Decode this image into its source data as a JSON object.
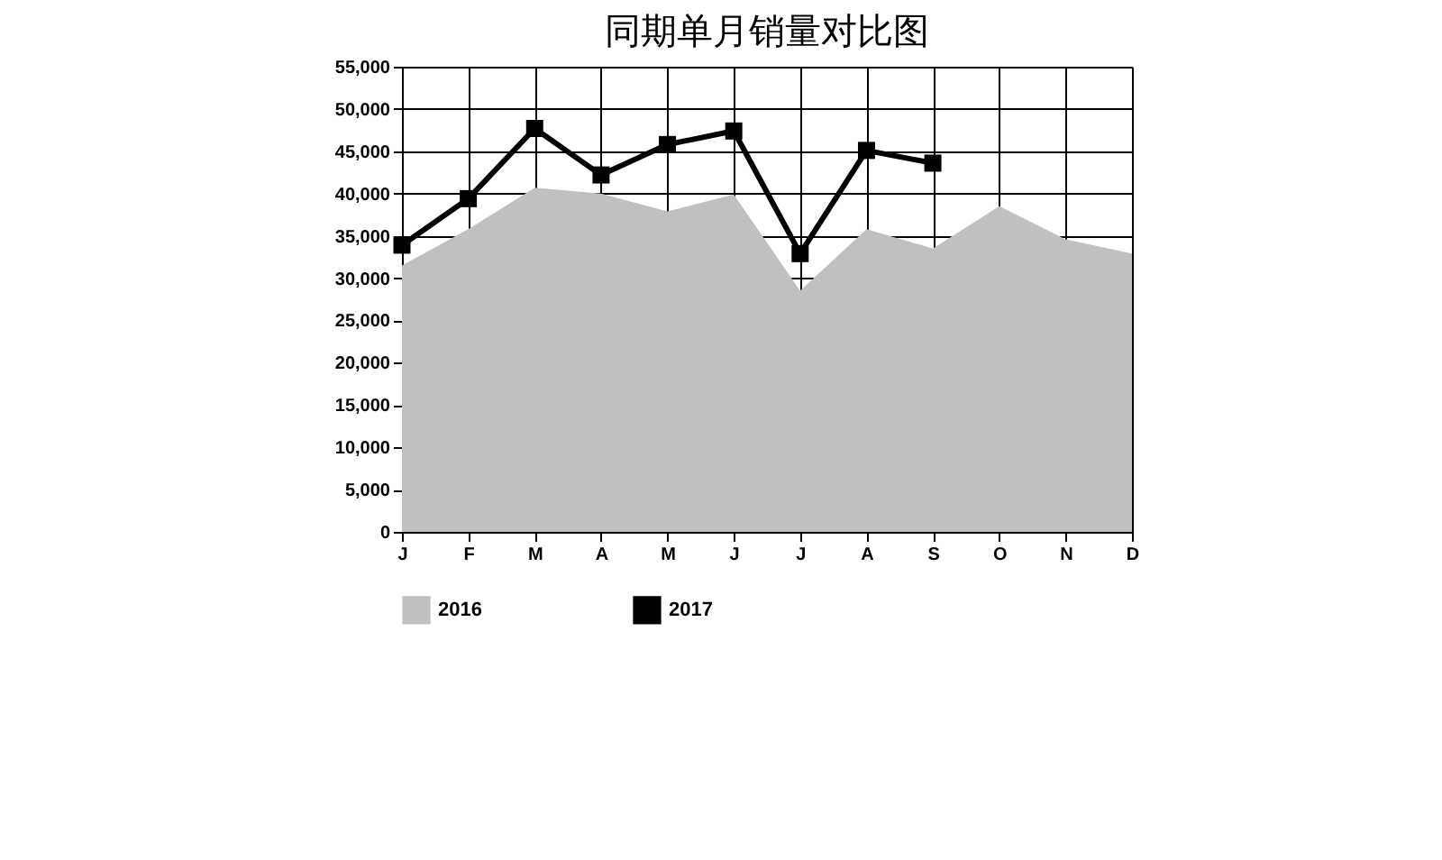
{
  "chart_data": {
    "type": "line",
    "title": "同期单月销量对比图",
    "categories": [
      "J",
      "F",
      "M",
      "A",
      "M",
      "J",
      "J",
      "A",
      "S",
      "O",
      "N",
      "D"
    ],
    "series": [
      {
        "name": "2016",
        "type": "area",
        "color": "#c0c0c0",
        "values": [
          31500,
          35800,
          40700,
          40000,
          37900,
          39900,
          28500,
          35800,
          33500,
          38500,
          34600,
          32900
        ]
      },
      {
        "name": "2017",
        "type": "line",
        "color": "#000000",
        "marker": "square",
        "values": [
          33900,
          39400,
          47700,
          42200,
          45800,
          47400,
          32900,
          45100,
          43600,
          null,
          null,
          null
        ]
      }
    ],
    "ylim": [
      0,
      55000
    ],
    "yticks": [
      0,
      {
        "value": 5000,
        "label": "5,000"
      },
      {
        "value": 10000,
        "label": "10,000"
      },
      {
        "value": 15000,
        "label": "15,000"
      },
      {
        "value": 20000,
        "label": "20,000"
      },
      {
        "value": 25000,
        "label": "25,000"
      },
      {
        "value": 30000,
        "label": "30,000"
      },
      {
        "value": 35000,
        "label": "35,000"
      },
      {
        "value": 40000,
        "label": "40,000"
      },
      {
        "value": 45000,
        "label": "45,000"
      },
      {
        "value": 50000,
        "label": "50,000"
      },
      {
        "value": 55000,
        "label": "55,000"
      }
    ],
    "grid": true,
    "legend": "bottom"
  }
}
